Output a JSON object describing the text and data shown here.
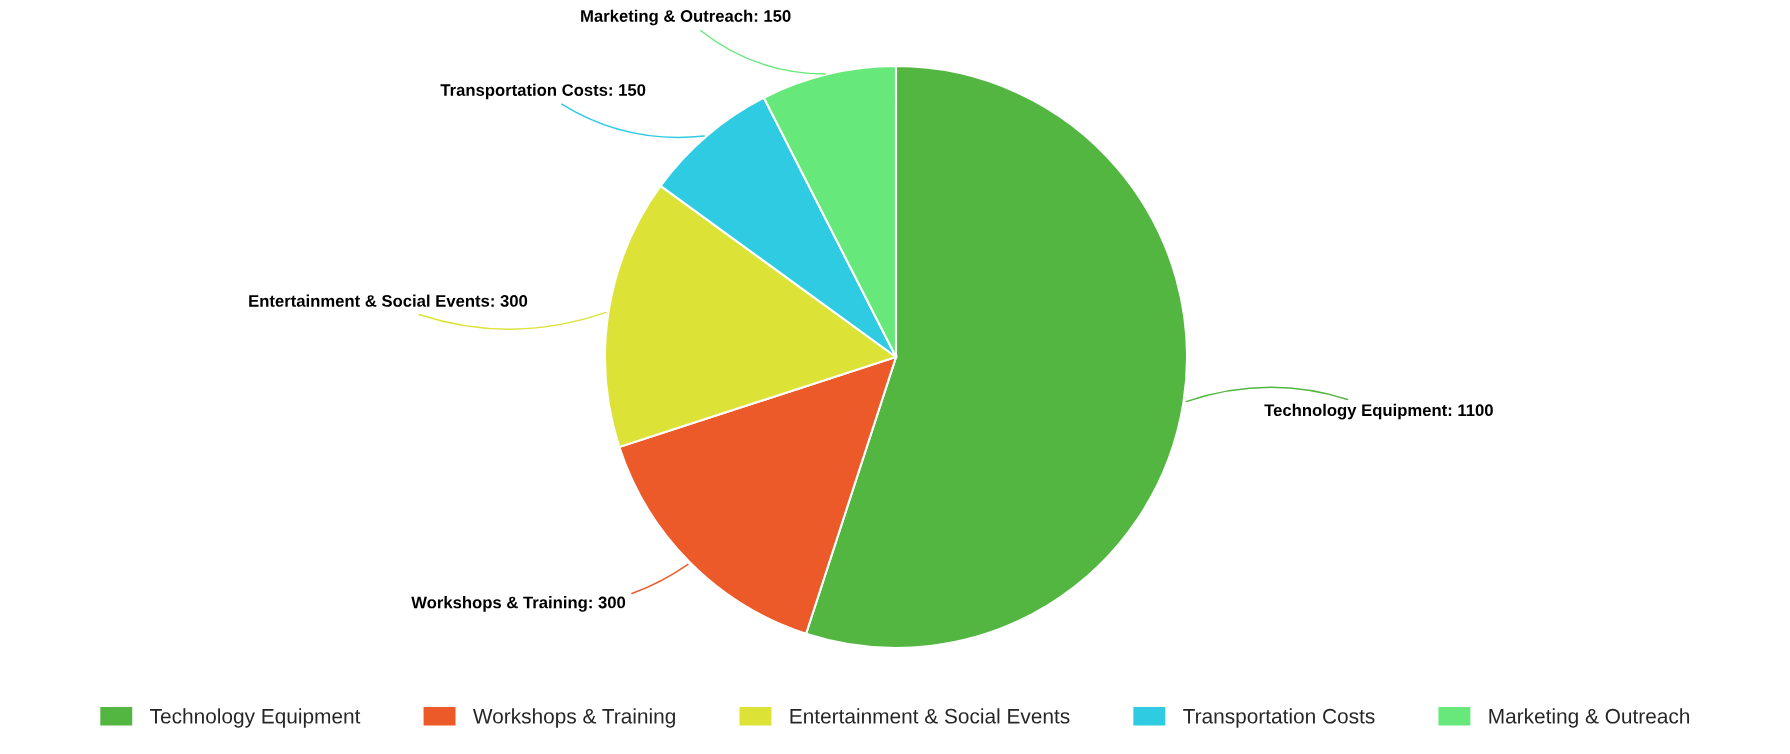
{
  "chart_data": {
    "type": "pie",
    "categories": [
      "Technology Equipment",
      "Workshops & Training",
      "Entertainment & Social Events",
      "Transportation Costs",
      "Marketing & Outreach"
    ],
    "values": [
      1100,
      300,
      300,
      150,
      150
    ],
    "colors": [
      "#52b641",
      "#ec5a29",
      "#dce236",
      "#2ecbe3",
      "#66e87a"
    ],
    "value_labels": [
      "Technology Equipment: 1100",
      "Workshops & Training: 300",
      "Entertainment & Social Events: 300",
      "Transportation Costs: 150",
      "Marketing & Outreach: 150"
    ],
    "legend": "bottom"
  }
}
